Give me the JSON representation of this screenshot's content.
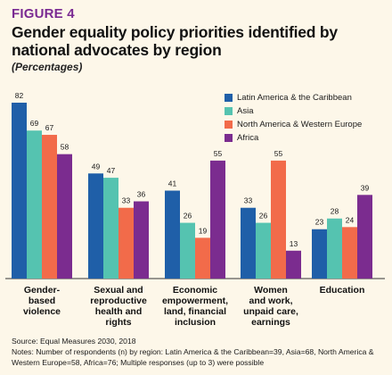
{
  "figure_label": "FIGURE 4",
  "title": "Gender equality policy priorities identified by national advocates by region",
  "subtitle": "(Percentages)",
  "source": "Source:  Equal Measures 2030, 2018",
  "notes": "Notes: Number of respondents (n) by region: Latin America & the Caribbean=39, Asia=68, North America & Western Europe=58, Africa=76; Multiple responses (up to 3) were possible",
  "chart_data": {
    "type": "bar",
    "categories": [
      [
        "Gender-",
        "based",
        "violence"
      ],
      [
        "Sexual and",
        "reproductive",
        "health and",
        "rights"
      ],
      [
        "Economic",
        "empowerment,",
        "land, financial",
        "inclusion"
      ],
      [
        "Women",
        "and work,",
        "unpaid care,",
        "earnings"
      ],
      [
        "Education"
      ]
    ],
    "series": [
      {
        "name": "Latin America & the Caribbean",
        "color": "#1f5fa8",
        "values": [
          82,
          49,
          41,
          33,
          23
        ]
      },
      {
        "name": "Asia",
        "color": "#55c3b0",
        "values": [
          69,
          47,
          26,
          26,
          28
        ]
      },
      {
        "name": "North America & Western Europe",
        "color": "#f26b4a",
        "values": [
          67,
          33,
          19,
          55,
          24
        ]
      },
      {
        "name": "Africa",
        "color": "#7b2c8f",
        "values": [
          58,
          36,
          55,
          13,
          39
        ]
      }
    ],
    "ylim": [
      0,
      82
    ],
    "legend_position": "top-right",
    "grid": false
  }
}
